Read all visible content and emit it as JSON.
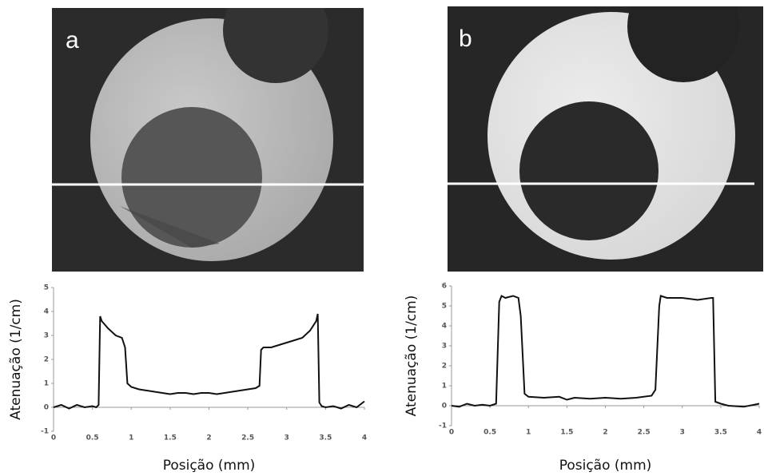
{
  "chart_data": [
    {
      "type": "line",
      "label": "a",
      "x_label": "Posição (mm)",
      "y_label": "Atenuação (1/cm)",
      "xlim": [
        0,
        4
      ],
      "xticks": [
        0,
        0.5,
        1,
        1.5,
        2,
        2.5,
        3,
        3.5,
        4
      ],
      "ylim": [
        -1,
        5
      ],
      "yticks": [
        -1,
        0,
        1,
        2,
        3,
        4,
        5
      ],
      "color": "#111111",
      "x": [
        0,
        0.1,
        0.2,
        0.3,
        0.4,
        0.5,
        0.55,
        0.58,
        0.6,
        0.62,
        0.7,
        0.8,
        0.88,
        0.92,
        0.95,
        1.0,
        1.1,
        1.2,
        1.3,
        1.4,
        1.5,
        1.6,
        1.7,
        1.8,
        1.9,
        2.0,
        2.1,
        2.2,
        2.3,
        2.4,
        2.5,
        2.6,
        2.65,
        2.67,
        2.7,
        2.8,
        2.9,
        3.0,
        3.1,
        3.2,
        3.3,
        3.38,
        3.4,
        3.42,
        3.45,
        3.5,
        3.6,
        3.7,
        3.8,
        3.9,
        4.0
      ],
      "values": [
        0,
        0.1,
        -0.05,
        0.1,
        0,
        0.05,
        0,
        0.1,
        3.8,
        3.6,
        3.3,
        3.0,
        2.9,
        2.5,
        1.0,
        0.85,
        0.75,
        0.7,
        0.65,
        0.6,
        0.55,
        0.6,
        0.6,
        0.55,
        0.6,
        0.6,
        0.55,
        0.6,
        0.65,
        0.7,
        0.75,
        0.8,
        0.9,
        2.4,
        2.5,
        2.5,
        2.6,
        2.7,
        2.8,
        2.9,
        3.2,
        3.6,
        3.9,
        0.2,
        0.05,
        0,
        0.05,
        -0.05,
        0.1,
        0,
        0.25
      ]
    },
    {
      "type": "line",
      "label": "b",
      "x_label": "Posição (mm)",
      "y_label": "Atenuação (1/cm)",
      "xlim": [
        0,
        4
      ],
      "xticks": [
        0,
        0.5,
        1,
        1.5,
        2,
        2.5,
        3,
        3.5,
        4
      ],
      "ylim": [
        -1,
        6
      ],
      "yticks": [
        -1,
        0,
        1,
        2,
        3,
        4,
        5,
        6
      ],
      "color": "#111111",
      "x": [
        0,
        0.1,
        0.2,
        0.3,
        0.4,
        0.5,
        0.58,
        0.62,
        0.65,
        0.7,
        0.8,
        0.87,
        0.9,
        0.95,
        1.0,
        1.2,
        1.4,
        1.5,
        1.6,
        1.8,
        2.0,
        2.2,
        2.4,
        2.6,
        2.65,
        2.7,
        2.72,
        2.8,
        3.0,
        3.2,
        3.38,
        3.4,
        3.43,
        3.5,
        3.6,
        3.8,
        4.0
      ],
      "values": [
        0,
        -0.05,
        0.1,
        0,
        0.05,
        0,
        0.1,
        5.2,
        5.5,
        5.4,
        5.5,
        5.4,
        4.5,
        0.6,
        0.45,
        0.4,
        0.45,
        0.3,
        0.4,
        0.35,
        0.4,
        0.35,
        0.4,
        0.5,
        0.8,
        5.0,
        5.5,
        5.4,
        5.4,
        5.3,
        5.4,
        5.4,
        0.2,
        0.1,
        0,
        -0.05,
        0.1
      ]
    }
  ]
}
